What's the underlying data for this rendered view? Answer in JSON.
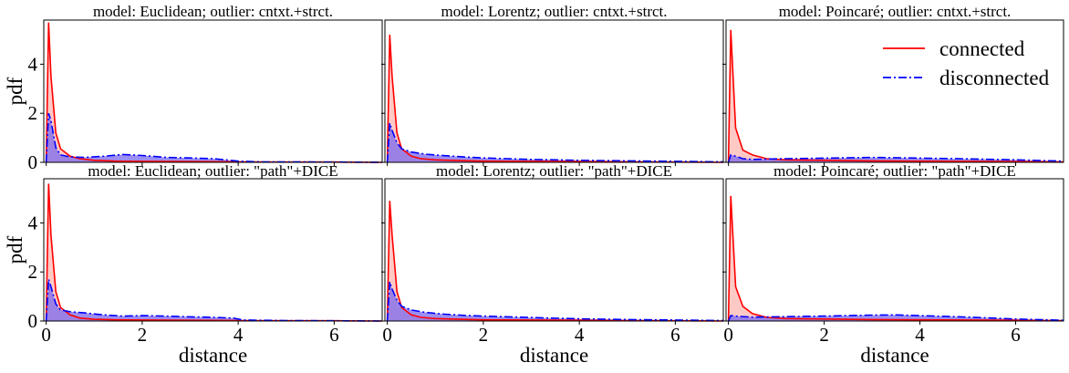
{
  "chart_data": {
    "type": "line",
    "layout": {
      "rows": 2,
      "cols": 3,
      "sharex": true,
      "sharey": true
    },
    "xlabel": "distance",
    "ylabel": "pdf",
    "xlim": [
      -0.05,
      7.0
    ],
    "ylim": [
      0,
      5.8
    ],
    "xticks": [
      0,
      2,
      4,
      6
    ],
    "yticks": [
      0,
      2,
      4
    ],
    "colors": {
      "connected": "#ff0000",
      "disconnected": "#0000ff",
      "connected_fill": "#ffb3ad",
      "disconnected_fill": "#7b68ee"
    },
    "legend": {
      "placement": "upper right",
      "panel": 2,
      "entries": [
        "connected",
        "disconnected"
      ]
    },
    "panels": [
      {
        "title": "model: Euclidean; outlier: cntxt.+strct.",
        "series": [
          {
            "name": "connected",
            "x": [
              0,
              0.05,
              0.1,
              0.2,
              0.3,
              0.5,
              0.7,
              1.0,
              1.5,
              2.0,
              3.0,
              4.0,
              5.0,
              6.0,
              7.0
            ],
            "y": [
              0,
              5.7,
              3.5,
              1.2,
              0.55,
              0.25,
              0.15,
              0.08,
              0.05,
              0.04,
              0.03,
              0.02,
              0.01,
              0.01,
              0.0
            ]
          },
          {
            "name": "disconnected",
            "x": [
              0,
              0.05,
              0.1,
              0.2,
              0.3,
              0.5,
              0.8,
              1.2,
              1.6,
              2.0,
              2.5,
              3.0,
              3.5,
              4.0,
              4.5,
              5.0,
              6.0,
              7.0
            ],
            "y": [
              0,
              2.0,
              1.7,
              0.6,
              0.3,
              0.22,
              0.2,
              0.25,
              0.32,
              0.28,
              0.2,
              0.18,
              0.15,
              0.05,
              0.02,
              0.02,
              0.01,
              0.0
            ]
          }
        ]
      },
      {
        "title": "model: Lorentz; outlier: cntxt.+strct.",
        "series": [
          {
            "name": "connected",
            "x": [
              0,
              0.05,
              0.1,
              0.2,
              0.3,
              0.5,
              0.7,
              1.0,
              1.5,
              2.0,
              3.0,
              4.0,
              5.0,
              6.0,
              7.0
            ],
            "y": [
              0,
              5.2,
              3.5,
              1.2,
              0.55,
              0.25,
              0.15,
              0.1,
              0.07,
              0.05,
              0.04,
              0.03,
              0.02,
              0.01,
              0.0
            ]
          },
          {
            "name": "disconnected",
            "x": [
              0,
              0.05,
              0.1,
              0.2,
              0.3,
              0.5,
              0.8,
              1.2,
              1.6,
              2.0,
              3.0,
              4.0,
              5.0,
              6.0,
              7.0
            ],
            "y": [
              0,
              1.6,
              1.3,
              0.8,
              0.55,
              0.42,
              0.33,
              0.27,
              0.22,
              0.18,
              0.12,
              0.08,
              0.06,
              0.04,
              0.02
            ]
          }
        ]
      },
      {
        "title": "model: Poincaré; outlier: cntxt.+strct.",
        "series": [
          {
            "name": "connected",
            "x": [
              0,
              0.05,
              0.15,
              0.3,
              0.5,
              0.8,
              1.2,
              2.0,
              3.0,
              4.0,
              5.0,
              6.0,
              7.0
            ],
            "y": [
              0,
              5.4,
              1.4,
              0.5,
              0.3,
              0.15,
              0.1,
              0.08,
              0.06,
              0.05,
              0.04,
              0.03,
              0.02
            ]
          },
          {
            "name": "disconnected",
            "x": [
              0,
              0.05,
              0.15,
              0.3,
              0.5,
              1.0,
              2.0,
              3.0,
              4.0,
              5.0,
              6.0,
              7.0
            ],
            "y": [
              0,
              0.3,
              0.25,
              0.15,
              0.12,
              0.14,
              0.17,
              0.2,
              0.17,
              0.14,
              0.1,
              0.05
            ]
          }
        ]
      },
      {
        "title": "model: Euclidean; outlier: \"path\"+DICE",
        "series": [
          {
            "name": "connected",
            "x": [
              0,
              0.05,
              0.1,
              0.2,
              0.3,
              0.5,
              0.7,
              1.0,
              1.5,
              2.0,
              3.0,
              4.0,
              5.0,
              6.0,
              7.0
            ],
            "y": [
              0,
              5.6,
              3.5,
              1.2,
              0.55,
              0.25,
              0.12,
              0.07,
              0.05,
              0.04,
              0.03,
              0.02,
              0.01,
              0.01,
              0.0
            ]
          },
          {
            "name": "disconnected",
            "x": [
              0,
              0.05,
              0.1,
              0.2,
              0.3,
              0.5,
              0.8,
              1.2,
              1.6,
              2.0,
              2.5,
              3.0,
              3.5,
              3.9,
              4.1,
              4.5,
              5.0,
              6.0,
              7.0
            ],
            "y": [
              0,
              1.7,
              1.4,
              0.7,
              0.45,
              0.38,
              0.33,
              0.25,
              0.2,
              0.22,
              0.2,
              0.17,
              0.15,
              0.12,
              0.04,
              0.03,
              0.02,
              0.01,
              0.0
            ]
          }
        ]
      },
      {
        "title": "model: Lorentz; outlier: \"path\"+DICE",
        "series": [
          {
            "name": "connected",
            "x": [
              0,
              0.05,
              0.1,
              0.2,
              0.3,
              0.5,
              0.7,
              1.0,
              1.5,
              2.0,
              3.0,
              4.0,
              5.0,
              6.0,
              7.0
            ],
            "y": [
              0,
              4.9,
              3.5,
              1.2,
              0.55,
              0.25,
              0.15,
              0.1,
              0.07,
              0.05,
              0.04,
              0.03,
              0.02,
              0.01,
              0.0
            ]
          },
          {
            "name": "disconnected",
            "x": [
              0,
              0.05,
              0.1,
              0.2,
              0.3,
              0.5,
              0.8,
              1.2,
              1.6,
              2.0,
              3.0,
              4.0,
              5.0,
              6.0,
              7.0
            ],
            "y": [
              0,
              1.6,
              1.3,
              0.85,
              0.6,
              0.45,
              0.35,
              0.28,
              0.23,
              0.2,
              0.14,
              0.09,
              0.06,
              0.04,
              0.02
            ]
          }
        ]
      },
      {
        "title": "model: Poincaré; outlier: \"path\"+DICE",
        "series": [
          {
            "name": "connected",
            "x": [
              0,
              0.05,
              0.15,
              0.3,
              0.5,
              0.8,
              1.2,
              2.0,
              3.0,
              4.0,
              5.0,
              6.0,
              7.0
            ],
            "y": [
              0,
              5.1,
              1.4,
              0.6,
              0.3,
              0.15,
              0.1,
              0.08,
              0.06,
              0.05,
              0.04,
              0.03,
              0.02
            ]
          },
          {
            "name": "disconnected",
            "x": [
              0,
              0.05,
              0.15,
              0.3,
              0.5,
              1.0,
              2.0,
              3.0,
              3.5,
              4.0,
              5.0,
              6.0,
              7.0
            ],
            "y": [
              0,
              0.22,
              0.2,
              0.18,
              0.16,
              0.17,
              0.2,
              0.24,
              0.25,
              0.22,
              0.16,
              0.08,
              0.03
            ]
          }
        ]
      }
    ]
  }
}
